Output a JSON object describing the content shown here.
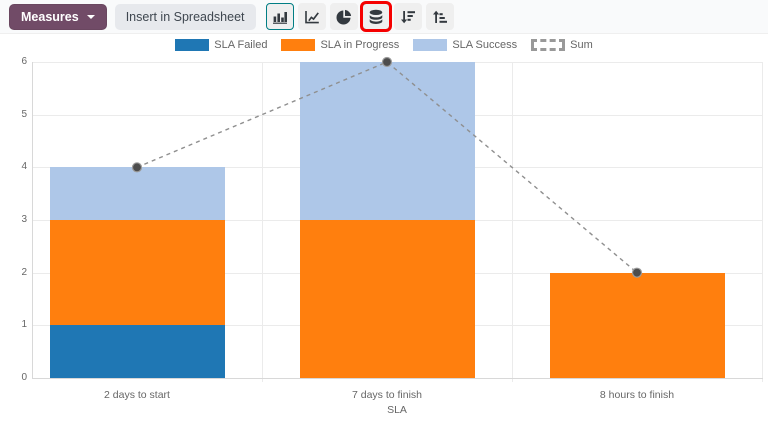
{
  "toolbar": {
    "measures_label": "Measures",
    "insert_in_spreadsheet_label": "Insert in Spreadsheet",
    "icons": [
      "bar-chart-icon",
      "line-chart-icon",
      "pie-chart-icon",
      "stacked-icon",
      "sort-descending-icon",
      "sort-ascending-icon"
    ],
    "active_chart_type": "bar",
    "stacked_enabled": true,
    "colors": {
      "measures_bg": "#714B67",
      "active_border": "#017e84",
      "annotation": "#F50000"
    }
  },
  "chart_data": {
    "type": "bar",
    "stacked": true,
    "title": "",
    "xlabel": "SLA",
    "ylabel": "",
    "ylim": [
      0,
      6
    ],
    "yticks": [
      0,
      1,
      2,
      3,
      4,
      5,
      6
    ],
    "grid": true,
    "legend_position": "top",
    "categories": [
      "2 days to start",
      "7 days to finish",
      "8 hours to finish"
    ],
    "series": [
      {
        "name": "SLA Failed",
        "color": "#1f77b4",
        "values": [
          1,
          0,
          0
        ]
      },
      {
        "name": "SLA in Progress",
        "color": "#ff7f0e",
        "values": [
          2,
          3,
          2
        ]
      },
      {
        "name": "SLA Success",
        "color": "#aec7e8",
        "values": [
          1,
          3,
          0
        ]
      }
    ],
    "line_series": {
      "name": "Sum",
      "color": "#8f8f8f",
      "point_color": "#4d4d4d",
      "dash": true,
      "values": [
        4,
        6,
        2
      ]
    }
  }
}
